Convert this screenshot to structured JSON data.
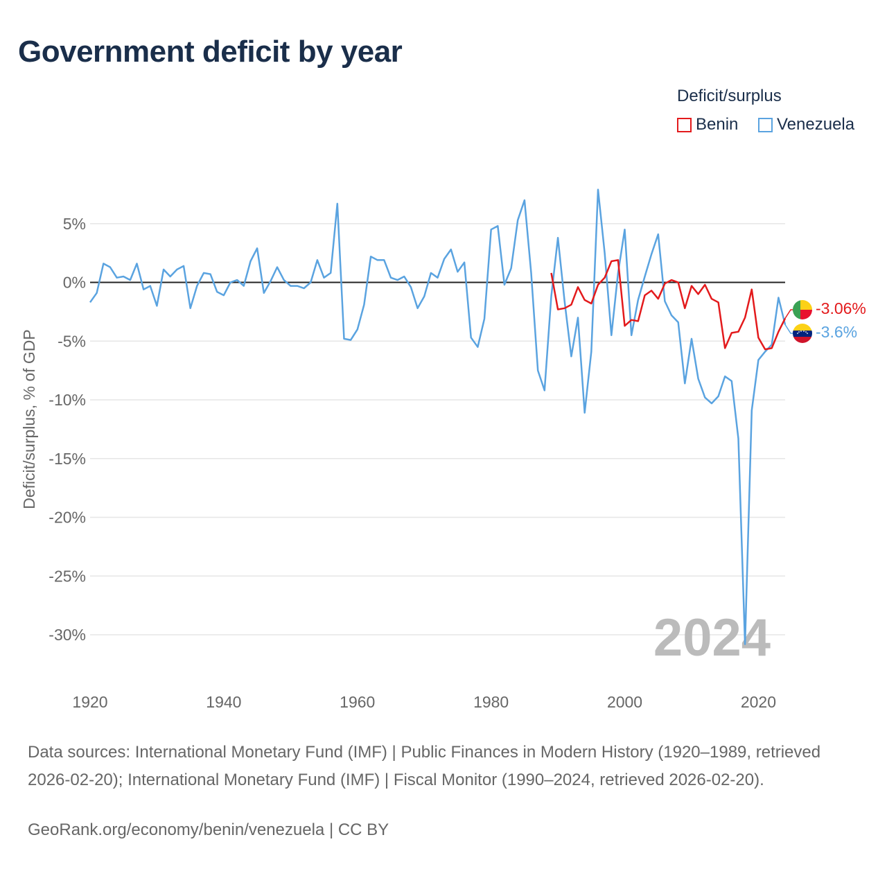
{
  "title": "Government deficit by year",
  "legend": {
    "title": "Deficit/surplus",
    "items": [
      {
        "label": "Benin",
        "color": "#e31a1c"
      },
      {
        "label": "Venezuela",
        "color": "#5aa3e0"
      }
    ]
  },
  "chart_data": {
    "type": "line",
    "title": "Government deficit by year",
    "xlabel": "",
    "ylabel": "Deficit/surplus, % of GDP",
    "xlim": [
      1920,
      2024
    ],
    "ylim": [
      -32,
      9
    ],
    "x_ticks": [
      1920,
      1940,
      1960,
      1980,
      2000,
      2020
    ],
    "x_tick_labels": [
      "1920",
      "1940",
      "1960",
      "1980",
      "2000",
      "2020"
    ],
    "y_ticks": [
      5,
      0,
      -5,
      -10,
      -15,
      -20,
      -25,
      -30
    ],
    "y_tick_labels": [
      "5%",
      "0%",
      "-5%",
      "-10%",
      "-15%",
      "-20%",
      "-25%",
      "-30%"
    ],
    "year_label": "2024",
    "series": [
      {
        "name": "Benin",
        "color": "#e31a1c",
        "end_label": "-3.06%",
        "x": [
          1989,
          1990,
          1991,
          1992,
          1993,
          1994,
          1995,
          1996,
          1997,
          1998,
          1999,
          2000,
          2001,
          2002,
          2003,
          2004,
          2005,
          2006,
          2007,
          2008,
          2009,
          2010,
          2011,
          2012,
          2013,
          2014,
          2015,
          2016,
          2017,
          2018,
          2019,
          2020,
          2021,
          2022,
          2023,
          2024
        ],
        "values": [
          0.8,
          -2.3,
          -2.2,
          -1.9,
          -0.4,
          -1.5,
          -1.8,
          -0.2,
          0.4,
          1.8,
          1.9,
          -3.7,
          -3.2,
          -3.3,
          -1.1,
          -0.7,
          -1.4,
          -0.1,
          0.2,
          0.0,
          -2.2,
          -0.3,
          -1.0,
          -0.2,
          -1.4,
          -1.7,
          -5.6,
          -4.3,
          -4.2,
          -3.0,
          -0.6,
          -4.7,
          -5.7,
          -5.6,
          -4.2,
          -3.06
        ]
      },
      {
        "name": "Venezuela",
        "color": "#5aa3e0",
        "end_label": "-3.6%",
        "x": [
          1920,
          1921,
          1922,
          1923,
          1924,
          1925,
          1926,
          1927,
          1928,
          1929,
          1930,
          1931,
          1932,
          1933,
          1934,
          1935,
          1936,
          1937,
          1938,
          1939,
          1940,
          1941,
          1942,
          1943,
          1944,
          1945,
          1946,
          1947,
          1948,
          1949,
          1950,
          1951,
          1952,
          1953,
          1954,
          1955,
          1956,
          1957,
          1958,
          1959,
          1960,
          1961,
          1962,
          1963,
          1964,
          1965,
          1966,
          1967,
          1968,
          1969,
          1970,
          1971,
          1972,
          1973,
          1974,
          1975,
          1976,
          1977,
          1978,
          1979,
          1980,
          1981,
          1982,
          1983,
          1984,
          1985,
          1986,
          1987,
          1988,
          1989,
          1990,
          1991,
          1992,
          1993,
          1994,
          1995,
          1996,
          1997,
          1998,
          1999,
          2000,
          2001,
          2002,
          2003,
          2004,
          2005,
          2006,
          2007,
          2008,
          2009,
          2010,
          2011,
          2012,
          2013,
          2014,
          2015,
          2016,
          2017,
          2018,
          2019,
          2020,
          2021,
          2022,
          2023,
          2024
        ],
        "values": [
          -1.7,
          -0.9,
          1.6,
          1.3,
          0.4,
          0.5,
          0.2,
          1.6,
          -0.6,
          -0.3,
          -2.0,
          1.1,
          0.5,
          1.1,
          1.4,
          -2.2,
          -0.3,
          0.8,
          0.7,
          -0.8,
          -1.1,
          0.0,
          0.2,
          -0.3,
          1.8,
          2.9,
          -0.9,
          0.1,
          1.3,
          0.2,
          -0.3,
          -0.3,
          -0.5,
          0.0,
          1.9,
          0.4,
          0.8,
          6.7,
          -4.8,
          -4.9,
          -4.0,
          -1.9,
          2.2,
          1.9,
          1.9,
          0.4,
          0.2,
          0.5,
          -0.4,
          -2.2,
          -1.2,
          0.8,
          0.4,
          2.0,
          2.8,
          0.9,
          1.7,
          -4.7,
          -5.5,
          -3.1,
          4.5,
          4.8,
          -0.2,
          1.2,
          5.3,
          7.0,
          0.8,
          -7.5,
          -9.2,
          -1.2,
          3.8,
          -1.6,
          -6.3,
          -3.0,
          -11.1,
          -5.9,
          7.9,
          2.5,
          -4.5,
          0.8,
          4.5,
          -4.5,
          -1.5,
          0.5,
          2.4,
          4.1,
          -1.6,
          -2.8,
          -3.4,
          -8.6,
          -4.8,
          -8.2,
          -9.8,
          -10.3,
          -9.7,
          -8.0,
          -8.4,
          -13.3,
          -30.8,
          -10.9,
          -6.6,
          -5.9,
          -5.3,
          -1.3,
          -3.6
        ]
      }
    ]
  },
  "footer": {
    "source": "Data sources: International Monetary Fund (IMF) | Public Finances in Modern History (1920–1989, retrieved 2026-02-20); International Monetary Fund (IMF) | Fiscal Monitor (1990–2024, retrieved 2026-02-20).",
    "credit": "GeoRank.org/economy/benin/venezuela | CC BY"
  }
}
